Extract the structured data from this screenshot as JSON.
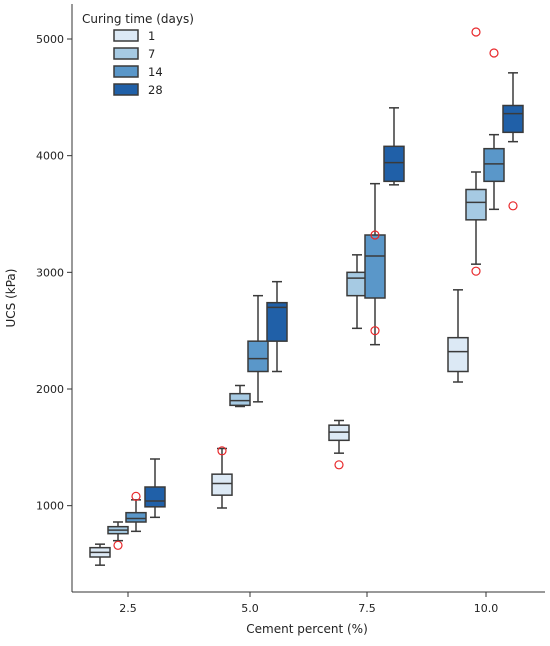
{
  "chart_data": {
    "type": "box",
    "xlabel": "Cement percent (%)",
    "ylabel": "UCS (kPa)",
    "categories": [
      "2.5",
      "5.0",
      "7.5",
      "10.0"
    ],
    "ylim": [
      260,
      5300
    ],
    "yticks": [
      1000,
      2000,
      3000,
      4000,
      5000
    ],
    "grid": false,
    "legend": {
      "title": "Curing time (days)",
      "placement": "top-left",
      "entries": [
        "1",
        "7",
        "14",
        "28"
      ]
    },
    "series": [
      {
        "name": "1",
        "color": "#dce9f5",
        "boxes": [
          {
            "category": "2.5",
            "whisker_low": 490,
            "q1": 560,
            "median": 600,
            "q3": 640,
            "whisker_high": 670,
            "outliers": []
          },
          {
            "category": "5.0",
            "whisker_low": 980,
            "q1": 1090,
            "median": 1190,
            "q3": 1270,
            "whisker_high": 1490,
            "outliers": [
              1470
            ]
          },
          {
            "category": "7.5",
            "whisker_low": 1450,
            "q1": 1560,
            "median": 1630,
            "q3": 1690,
            "whisker_high": 1730,
            "outliers": [
              1350
            ]
          },
          {
            "category": "10.0",
            "whisker_low": 2060,
            "q1": 2150,
            "median": 2320,
            "q3": 2440,
            "whisker_high": 2850,
            "outliers": []
          }
        ]
      },
      {
        "name": "7",
        "color": "#a6cae3",
        "boxes": [
          {
            "category": "2.5",
            "whisker_low": 700,
            "q1": 760,
            "median": 790,
            "q3": 820,
            "whisker_high": 860,
            "outliers": [
              660
            ]
          },
          {
            "category": "5.0",
            "whisker_low": 1850,
            "q1": 1860,
            "median": 1900,
            "q3": 1960,
            "whisker_high": 2030,
            "outliers": []
          },
          {
            "category": "7.5",
            "whisker_low": 2520,
            "q1": 2800,
            "median": 2950,
            "q3": 3000,
            "whisker_high": 3150,
            "outliers": []
          },
          {
            "category": "10.0",
            "whisker_low": 3070,
            "q1": 3450,
            "median": 3600,
            "q3": 3710,
            "whisker_high": 3860,
            "outliers": [
              3010,
              5060
            ]
          }
        ]
      },
      {
        "name": "14",
        "color": "#5a97c9",
        "boxes": [
          {
            "category": "2.5",
            "whisker_low": 780,
            "q1": 860,
            "median": 890,
            "q3": 940,
            "whisker_high": 1050,
            "outliers": [
              1080
            ]
          },
          {
            "category": "5.0",
            "whisker_low": 1890,
            "q1": 2150,
            "median": 2260,
            "q3": 2410,
            "whisker_high": 2800,
            "outliers": []
          },
          {
            "category": "7.5",
            "whisker_low": 2380,
            "q1": 2780,
            "median": 3140,
            "q3": 3320,
            "whisker_high": 3760,
            "outliers": [
              3320,
              2500
            ]
          },
          {
            "category": "10.0",
            "whisker_low": 3540,
            "q1": 3780,
            "median": 3930,
            "q3": 4060,
            "whisker_high": 4180,
            "outliers": [
              4880
            ]
          }
        ]
      },
      {
        "name": "28",
        "color": "#2060a8",
        "boxes": [
          {
            "category": "2.5",
            "whisker_low": 900,
            "q1": 990,
            "median": 1040,
            "q3": 1160,
            "whisker_high": 1400,
            "outliers": []
          },
          {
            "category": "5.0",
            "whisker_low": 2150,
            "q1": 2410,
            "median": 2700,
            "q3": 2740,
            "whisker_high": 2920,
            "outliers": []
          },
          {
            "category": "7.5",
            "whisker_low": 3750,
            "q1": 3780,
            "median": 3940,
            "q3": 4080,
            "whisker_high": 4410,
            "outliers": []
          },
          {
            "category": "10.0",
            "whisker_low": 4120,
            "q1": 4200,
            "median": 4360,
            "q3": 4430,
            "whisker_high": 4710,
            "outliers": [
              3570
            ]
          }
        ]
      }
    ]
  }
}
